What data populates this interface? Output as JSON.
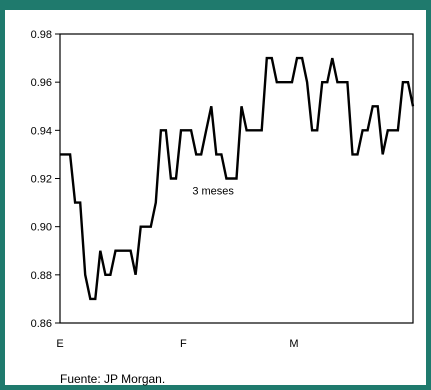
{
  "chart_data": {
    "type": "line",
    "title": "",
    "xlabel": "",
    "ylabel": "",
    "ylim": [
      0.86,
      0.98
    ],
    "yticks": [
      0.86,
      0.88,
      0.9,
      0.92,
      0.94,
      0.96,
      0.98
    ],
    "ytick_labels": [
      "0.86",
      "0.88",
      "0.90",
      "0.92",
      "0.94",
      "0.96",
      "0.98"
    ],
    "xtick_labels": [
      "E",
      "F",
      "M"
    ],
    "xtick_positions": [
      0,
      29,
      55
    ],
    "xlim": [
      0,
      83
    ],
    "grid": false,
    "annotation": "3 meses",
    "annotation_at": [
      36,
      0.915
    ],
    "series": [
      {
        "values": [
          0.93,
          0.93,
          0.93,
          0.91,
          0.91,
          0.88,
          0.87,
          0.87,
          0.89,
          0.88,
          0.88,
          0.89,
          0.89,
          0.89,
          0.89,
          0.88,
          0.9,
          0.9,
          0.9,
          0.91,
          0.94,
          0.94,
          0.92,
          0.92,
          0.94,
          0.94,
          0.94,
          0.93,
          0.93,
          0.94,
          0.95,
          0.93,
          0.93,
          0.92,
          0.92,
          0.92,
          0.95,
          0.94,
          0.94,
          0.94,
          0.94,
          0.97,
          0.97,
          0.96,
          0.96,
          0.96,
          0.96,
          0.97,
          0.97,
          0.96,
          0.94,
          0.94,
          0.96,
          0.96,
          0.97,
          0.96,
          0.96,
          0.96,
          0.93,
          0.93,
          0.94,
          0.94,
          0.95,
          0.95,
          0.93,
          0.94,
          0.94,
          0.94,
          0.96,
          0.96,
          0.95
        ]
      }
    ]
  },
  "source": "Fuente:  JP Morgan."
}
